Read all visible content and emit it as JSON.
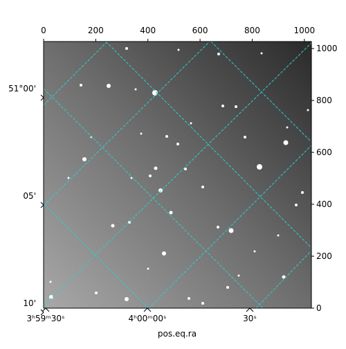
{
  "chart_data": {
    "type": "image",
    "xlabel": "pos.eq.ra",
    "xlim": [
      0,
      1027
    ],
    "xticks": [
      0,
      200,
      400,
      600,
      800,
      1000
    ],
    "ylim": [
      0,
      1027
    ],
    "yticks": [
      0,
      200,
      400,
      600,
      800,
      1000
    ],
    "ra_ticks": [
      "3ʰ59ᵐ30ˢ",
      "4ʰ00ᵐ00ˢ",
      "30ˢ"
    ],
    "dec_ticks": [
      "51°00'",
      "05'",
      "10'"
    ],
    "grid_color": "#33cccc"
  }
}
